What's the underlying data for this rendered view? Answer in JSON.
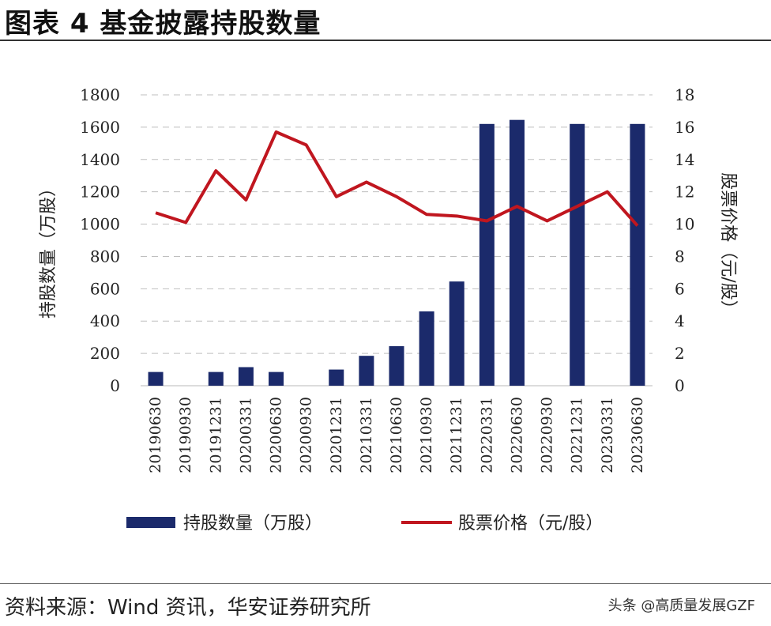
{
  "figure_title": "图表 4  基金披露持股数量",
  "source_note": "资料来源：Wind 资讯，华安证券研究所",
  "watermark": "头条 @高质量发展GZF",
  "colors": {
    "bar": "#1b2a6b",
    "line": "#c0161f"
  },
  "chart_data": {
    "type": "bar+line",
    "categories": [
      "20190630",
      "20190930",
      "20191231",
      "20200331",
      "20200630",
      "20200930",
      "20201231",
      "20210331",
      "20210630",
      "20210930",
      "20211231",
      "20220331",
      "20220630",
      "20220930",
      "20221231",
      "20230331",
      "20230630"
    ],
    "series": [
      {
        "name": "持股数量（万股）",
        "type": "bar",
        "axis": "left",
        "values": [
          85,
          null,
          85,
          115,
          85,
          null,
          100,
          185,
          245,
          460,
          645,
          1620,
          1645,
          null,
          1620,
          null,
          1620
        ]
      },
      {
        "name": "股票价格（元/股）",
        "type": "line",
        "axis": "right",
        "values": [
          10.7,
          10.1,
          13.3,
          11.5,
          15.7,
          14.9,
          11.7,
          12.6,
          11.7,
          10.6,
          10.5,
          10.2,
          11.1,
          10.2,
          11.1,
          12.0,
          9.9
        ]
      }
    ],
    "ylabel_left": "持股数量（万股）",
    "ylabel_right": "股票价格（元/股）",
    "ylim_left": [
      0,
      1800
    ],
    "ylim_right": [
      0,
      18
    ],
    "yticks_left": [
      "0",
      "200",
      "400",
      "600",
      "800",
      "1000",
      "1200",
      "1400",
      "1600",
      "1800"
    ],
    "yticks_right": [
      "0",
      "2",
      "4",
      "6",
      "8",
      "10",
      "12",
      "14",
      "16",
      "18"
    ],
    "grid": true,
    "legend_position": "bottom"
  }
}
